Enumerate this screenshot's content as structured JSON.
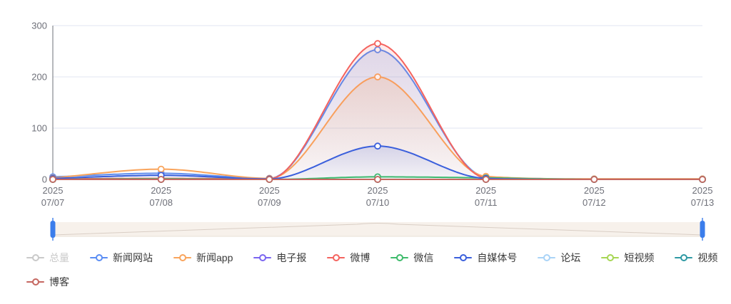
{
  "chart_data": {
    "type": "line",
    "smooth": true,
    "grid": true,
    "legend_position": "bottom",
    "ylim": [
      0,
      300
    ],
    "yticks": [
      0,
      100,
      200,
      300
    ],
    "categories": [
      {
        "year": "2025",
        "date": "07/07"
      },
      {
        "year": "2025",
        "date": "07/08"
      },
      {
        "year": "2025",
        "date": "07/09"
      },
      {
        "year": "2025",
        "date": "07/10"
      },
      {
        "year": "2025",
        "date": "07/11"
      },
      {
        "year": "2025",
        "date": "07/12"
      },
      {
        "year": "2025",
        "date": "07/13"
      }
    ],
    "series": [
      {
        "name": "总量",
        "color": "#c9c9c9",
        "selected": false,
        "values": null,
        "area_opacity": 0
      },
      {
        "name": "论坛",
        "color": "#A9D3F7",
        "selected": true,
        "values": [
          2,
          8,
          1,
          253,
          5,
          0,
          0
        ],
        "area_opacity": 0.1
      },
      {
        "name": "新闻网站",
        "color": "#5A8DF4",
        "selected": true,
        "values": [
          5,
          12,
          2,
          253,
          5,
          1,
          1
        ],
        "area_opacity": 0.16
      },
      {
        "name": "新闻app",
        "color": "#F9A45C",
        "selected": true,
        "values": [
          3,
          20,
          2,
          200,
          6,
          1,
          1
        ],
        "area_opacity": 0.2
      },
      {
        "name": "电子报",
        "color": "#7A65F0",
        "selected": true,
        "values": [
          0,
          0,
          0,
          0,
          0,
          0,
          0
        ],
        "area_opacity": 0
      },
      {
        "name": "微博",
        "color": "#F4635E",
        "selected": true,
        "values": [
          1,
          2,
          1,
          265,
          3,
          0,
          0
        ],
        "area_opacity": 0.14
      },
      {
        "name": "微信",
        "color": "#3DBB6B",
        "selected": true,
        "values": [
          0,
          1,
          0,
          5,
          3,
          0,
          0
        ],
        "area_opacity": 0.06
      },
      {
        "name": "自媒体号",
        "color": "#3A5FDC",
        "selected": true,
        "values": [
          2,
          8,
          1,
          65,
          2,
          0,
          0
        ],
        "area_opacity": 0.16
      },
      {
        "name": "短视频",
        "color": "#A6D653",
        "selected": true,
        "values": [
          0,
          0,
          0,
          0,
          0,
          0,
          0
        ],
        "area_opacity": 0
      },
      {
        "name": "视频",
        "color": "#2E99A3",
        "selected": true,
        "values": [
          0,
          0,
          0,
          0,
          0,
          0,
          0
        ],
        "area_opacity": 0
      },
      {
        "name": "博客",
        "color": "#C56760",
        "selected": true,
        "values": [
          0,
          0,
          0,
          0,
          0,
          0,
          0
        ],
        "area_opacity": 0
      }
    ],
    "axis_color": "#6E7079",
    "grid_color": "#E0E6F1"
  },
  "legend": {
    "rows": [
      [
        "总量",
        "新闻网站",
        "新闻app",
        "电子报",
        "微博",
        "微信",
        "自媒体号",
        "论坛",
        "短视频",
        "视频"
      ],
      [
        "博客"
      ]
    ]
  },
  "slider": {
    "track_color": "#F7F1EB",
    "edge_color": "#EAE0D6",
    "preview_color": "#D9CEC5",
    "handle_color": "#3B7DEB",
    "range_start_pct": 0,
    "range_end_pct": 100
  }
}
